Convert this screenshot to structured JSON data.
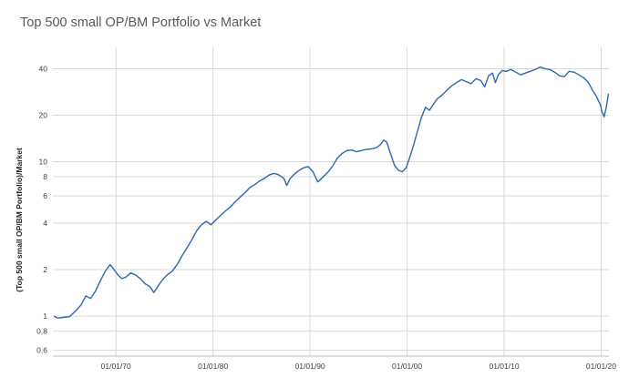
{
  "chart_data": {
    "type": "line",
    "title": "Top 500 small OP/BM Portfolio vs Market",
    "xlabel": "",
    "ylabel": "(Top 500 small OP/BM Portfolio)/Market",
    "y_scale": "log",
    "ylim": [
      0.55,
      55
    ],
    "xlim": [
      1963.5,
      2020.8
    ],
    "grid": "vertical at x ticks, horizontal at y ticks",
    "legend": "none",
    "line_color": "#2e67b1",
    "x_ticks": [
      {
        "value": 1970,
        "label": "01/01/70"
      },
      {
        "value": 1980,
        "label": "01/01/80"
      },
      {
        "value": 1990,
        "label": "01/01/90"
      },
      {
        "value": 2000,
        "label": "01/01/00"
      },
      {
        "value": 2010,
        "label": "01/01/10"
      },
      {
        "value": 2020,
        "label": "01/01/20"
      }
    ],
    "y_ticks": [
      {
        "value": 0.6,
        "label": "0,6"
      },
      {
        "value": 0.8,
        "label": "0,8"
      },
      {
        "value": 1,
        "label": "1"
      },
      {
        "value": 2,
        "label": "2"
      },
      {
        "value": 4,
        "label": "4"
      },
      {
        "value": 6,
        "label": "6"
      },
      {
        "value": 8,
        "label": "8"
      },
      {
        "value": 10,
        "label": "10"
      },
      {
        "value": 20,
        "label": "20"
      },
      {
        "value": 40,
        "label": "40"
      }
    ],
    "series": [
      {
        "points": [
          [
            1963.6,
            1.0
          ],
          [
            1964.0,
            0.97
          ],
          [
            1964.6,
            0.98
          ],
          [
            1965.2,
            0.99
          ],
          [
            1965.8,
            1.07
          ],
          [
            1966.4,
            1.18
          ],
          [
            1966.9,
            1.35
          ],
          [
            1967.4,
            1.3
          ],
          [
            1967.9,
            1.45
          ],
          [
            1968.4,
            1.7
          ],
          [
            1968.9,
            1.95
          ],
          [
            1969.4,
            2.15
          ],
          [
            1969.8,
            2.0
          ],
          [
            1970.2,
            1.85
          ],
          [
            1970.6,
            1.75
          ],
          [
            1971.0,
            1.78
          ],
          [
            1971.5,
            1.9
          ],
          [
            1972.0,
            1.85
          ],
          [
            1972.5,
            1.75
          ],
          [
            1973.0,
            1.62
          ],
          [
            1973.5,
            1.55
          ],
          [
            1973.9,
            1.42
          ],
          [
            1974.3,
            1.55
          ],
          [
            1974.8,
            1.72
          ],
          [
            1975.3,
            1.85
          ],
          [
            1975.8,
            1.95
          ],
          [
            1976.3,
            2.15
          ],
          [
            1976.8,
            2.45
          ],
          [
            1977.3,
            2.75
          ],
          [
            1977.8,
            3.1
          ],
          [
            1978.3,
            3.55
          ],
          [
            1978.8,
            3.9
          ],
          [
            1979.3,
            4.1
          ],
          [
            1979.8,
            3.9
          ],
          [
            1980.3,
            4.2
          ],
          [
            1980.8,
            4.5
          ],
          [
            1981.3,
            4.8
          ],
          [
            1981.8,
            5.1
          ],
          [
            1982.3,
            5.5
          ],
          [
            1982.8,
            5.9
          ],
          [
            1983.3,
            6.3
          ],
          [
            1983.8,
            6.8
          ],
          [
            1984.3,
            7.1
          ],
          [
            1984.8,
            7.5
          ],
          [
            1985.3,
            7.8
          ],
          [
            1985.8,
            8.2
          ],
          [
            1986.3,
            8.4
          ],
          [
            1986.8,
            8.2
          ],
          [
            1987.3,
            7.8
          ],
          [
            1987.6,
            7.0
          ],
          [
            1987.9,
            7.7
          ],
          [
            1988.3,
            8.2
          ],
          [
            1988.8,
            8.7
          ],
          [
            1989.3,
            9.1
          ],
          [
            1989.8,
            9.3
          ],
          [
            1990.3,
            8.6
          ],
          [
            1990.8,
            7.4
          ],
          [
            1991.2,
            7.8
          ],
          [
            1991.8,
            8.5
          ],
          [
            1992.3,
            9.3
          ],
          [
            1992.8,
            10.5
          ],
          [
            1993.3,
            11.3
          ],
          [
            1993.8,
            11.8
          ],
          [
            1994.3,
            11.9
          ],
          [
            1994.8,
            11.6
          ],
          [
            1995.3,
            11.8
          ],
          [
            1995.8,
            12.0
          ],
          [
            1996.3,
            12.1
          ],
          [
            1996.8,
            12.3
          ],
          [
            1997.2,
            12.8
          ],
          [
            1997.6,
            13.8
          ],
          [
            1997.9,
            13.4
          ],
          [
            1998.3,
            11.2
          ],
          [
            1998.7,
            9.5
          ],
          [
            1999.1,
            8.8
          ],
          [
            1999.5,
            8.6
          ],
          [
            1999.9,
            9.1
          ],
          [
            2000.3,
            10.8
          ],
          [
            2000.7,
            13.0
          ],
          [
            2001.1,
            16.0
          ],
          [
            2001.5,
            19.5
          ],
          [
            2001.9,
            22.5
          ],
          [
            2002.3,
            21.5
          ],
          [
            2002.7,
            23.5
          ],
          [
            2003.1,
            25.5
          ],
          [
            2003.6,
            27.0
          ],
          [
            2004.1,
            29.0
          ],
          [
            2004.6,
            31.0
          ],
          [
            2005.1,
            32.5
          ],
          [
            2005.6,
            34.0
          ],
          [
            2006.1,
            33.0
          ],
          [
            2006.6,
            32.0
          ],
          [
            2007.1,
            34.5
          ],
          [
            2007.6,
            33.5
          ],
          [
            2008.0,
            30.5
          ],
          [
            2008.4,
            36.0
          ],
          [
            2008.8,
            37.5
          ],
          [
            2009.1,
            32.5
          ],
          [
            2009.4,
            36.5
          ],
          [
            2009.8,
            39.0
          ],
          [
            2010.2,
            38.5
          ],
          [
            2010.7,
            39.5
          ],
          [
            2011.2,
            38.0
          ],
          [
            2011.7,
            36.5
          ],
          [
            2012.2,
            37.5
          ],
          [
            2012.7,
            38.5
          ],
          [
            2013.2,
            39.5
          ],
          [
            2013.7,
            41.0
          ],
          [
            2014.2,
            40.0
          ],
          [
            2014.7,
            39.5
          ],
          [
            2015.2,
            38.0
          ],
          [
            2015.7,
            36.0
          ],
          [
            2016.2,
            35.5
          ],
          [
            2016.7,
            38.5
          ],
          [
            2017.2,
            38.0
          ],
          [
            2017.7,
            36.5
          ],
          [
            2018.2,
            35.0
          ],
          [
            2018.7,
            32.5
          ],
          [
            2019.1,
            29.0
          ],
          [
            2019.5,
            26.5
          ],
          [
            2019.9,
            23.5
          ],
          [
            2020.1,
            21.0
          ],
          [
            2020.3,
            19.5
          ],
          [
            2020.45,
            21.5
          ],
          [
            2020.6,
            24.0
          ],
          [
            2020.75,
            27.5
          ]
        ]
      }
    ]
  }
}
